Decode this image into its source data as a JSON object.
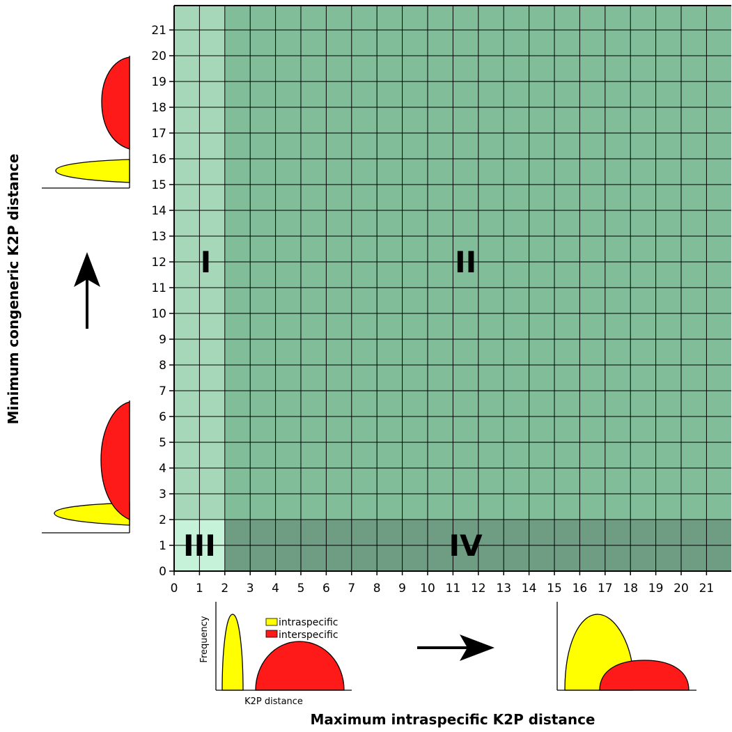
{
  "axes": {
    "x_title": "Maximum intraspecific K2P distance",
    "y_title": "Minimum congeneric K2P distance",
    "x_ticks": [
      "0",
      "1",
      "2",
      "3",
      "4",
      "5",
      "6",
      "7",
      "8",
      "9",
      "10",
      "11",
      "12",
      "13",
      "14",
      "15",
      "16",
      "17",
      "18",
      "19",
      "20",
      "21"
    ],
    "y_ticks": [
      "0",
      "1",
      "2",
      "3",
      "4",
      "5",
      "6",
      "7",
      "8",
      "9",
      "10",
      "11",
      "12",
      "13",
      "14",
      "15",
      "16",
      "17",
      "18",
      "19",
      "20",
      "21"
    ],
    "range": [
      0,
      22
    ],
    "threshold": 2
  },
  "quadrants": [
    {
      "label": "I",
      "x_from": 0,
      "x_to": 2,
      "y_from": 2,
      "y_to": 22,
      "color": "#a6d7b8"
    },
    {
      "label": "II",
      "x_from": 2,
      "x_to": 22,
      "y_from": 2,
      "y_to": 22,
      "color": "#80bd98"
    },
    {
      "label": "III",
      "x_from": 0,
      "x_to": 2,
      "y_from": 0,
      "y_to": 2,
      "color": "#c6f2d9"
    },
    {
      "label": "IV",
      "x_from": 2,
      "x_to": 22,
      "y_from": 0,
      "y_to": 2,
      "color": "#6f9d83"
    }
  ],
  "legend": {
    "intraspecific": "intraspecific",
    "interspecific": "interspecific",
    "intraspecific_color": "#ffff00",
    "interspecific_color": "#ff1a1a"
  },
  "inset": {
    "y_label": "Frequency",
    "x_label": "K2P distance"
  },
  "arrows": {
    "horizontal": "arrow-right",
    "vertical": "arrow-up"
  }
}
